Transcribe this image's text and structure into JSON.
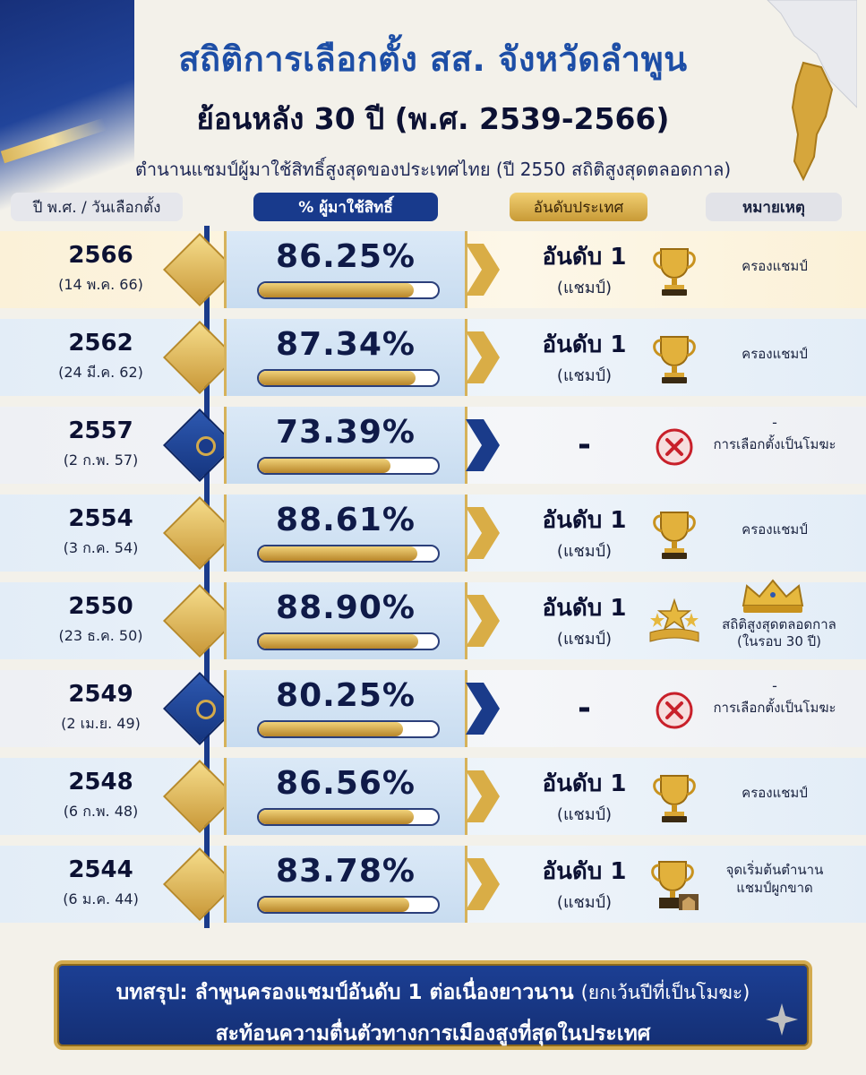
{
  "header": {
    "title": "สถิติการเลือกตั้ง สส. จังหวัดลำพูน",
    "subtitle": "ย้อนหลัง 30 ปี (พ.ศ. 2539-2566)",
    "tagline": "ตำนานแชมป์ผู้มาใช้สิทธิ์สูงสุดของประเทศไทย (ปี 2550 สถิติสูงสุดตลอดกาล)"
  },
  "columns": {
    "year": "ปี พ.ศ. / วันเลือกตั้ง",
    "percent": "% ผู้มาใช้สิทธิ์",
    "rank": "อันดับประเทศ",
    "note": "หมายเหตุ"
  },
  "colors": {
    "navy": "#183a8c",
    "gold": "#d3ab4f",
    "title_blue": "#1d4ea6",
    "void_red": "#c8202a"
  },
  "rows": [
    {
      "year": "2566",
      "date": "(14 พ.ค. 66)",
      "percent": "86.25%",
      "fill": 0.8625,
      "rank": "อันดับ 1",
      "rank_sub": "(แชมป์)",
      "icon": "trophy-icon",
      "note": "ครองแชมป์",
      "status": "champion"
    },
    {
      "year": "2562",
      "date": "(24 มี.ค. 62)",
      "percent": "87.34%",
      "fill": 0.8734,
      "rank": "อันดับ 1",
      "rank_sub": "(แชมป์)",
      "icon": "trophy-icon",
      "note": "ครองแชมป์",
      "status": "champion"
    },
    {
      "year": "2557",
      "date": "(2 ก.พ. 57)",
      "percent": "73.39%",
      "fill": 0.7339,
      "rank": "-",
      "icon": "cross-circle-icon",
      "note_dash": "-",
      "note": "การเลือกตั้งเป็นโมฆะ",
      "status": "void"
    },
    {
      "year": "2554",
      "date": "(3 ก.ค. 54)",
      "percent": "88.61%",
      "fill": 0.8861,
      "rank": "อันดับ 1",
      "rank_sub": "(แชมป์)",
      "icon": "trophy-icon",
      "note": "ครองแชมป์",
      "status": "champion"
    },
    {
      "year": "2550",
      "date": "(23 ธ.ค. 50)",
      "percent": "88.90%",
      "fill": 0.889,
      "rank": "อันดับ 1",
      "rank_sub": "(แชมป์)",
      "icon": "stars-ribbon-icon",
      "note_line1": "สถิติสูงสุดตลอดกาล",
      "note_line2": "(ในรอบ 30 ปี)",
      "status": "record"
    },
    {
      "year": "2549",
      "date": "(2 เม.ย. 49)",
      "percent": "80.25%",
      "fill": 0.8025,
      "rank": "-",
      "icon": "cross-circle-icon",
      "note_dash": "-",
      "note": "การเลือกตั้งเป็นโมฆะ",
      "status": "void"
    },
    {
      "year": "2548",
      "date": "(6 ก.พ. 48)",
      "percent": "86.56%",
      "fill": 0.8656,
      "rank": "อันดับ 1",
      "rank_sub": "(แชมป์)",
      "icon": "trophy-icon",
      "note": "ครองแชมป์",
      "status": "champion"
    },
    {
      "year": "2544",
      "date": "(6 ม.ค. 44)",
      "percent": "83.78%",
      "fill": 0.8378,
      "rank": "อันดับ 1",
      "rank_sub": "(แชมป์)",
      "icon": "trophy-podium-icon",
      "note_line1": "จุดเริ่มต้นตำนาน",
      "note_line2": "แชมป์ผูกขาด",
      "status": "origin"
    }
  ],
  "footer": {
    "line1_bold": "บทสรุป: ลำพูนครองแชมป์อันดับ 1 ต่อเนื่องยาวนาน",
    "line1_muted": "(ยกเว้นปีที่เป็นโมฆะ)",
    "line2": "สะท้อนความตื่นตัวทางการเมืองสูงที่สุดในประเทศ"
  }
}
